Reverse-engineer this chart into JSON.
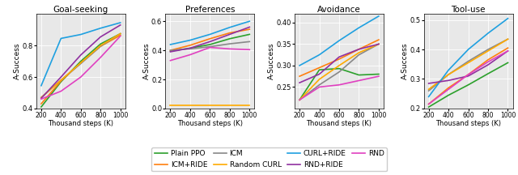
{
  "x": [
    200,
    400,
    600,
    800,
    1000
  ],
  "titles": [
    "Goal-seeking",
    "Preferences",
    "Avoidance",
    "Tool-use"
  ],
  "xlabel": "Thousand steps (K)",
  "ylabel": "A-Success",
  "series": {
    "Plain PPO": {
      "color": "#2ca02c",
      "lw": 1.2
    },
    "ICM+RIDE": {
      "color": "#ff7f0e",
      "lw": 1.2
    },
    "ICM": {
      "color": "#888888",
      "lw": 1.2
    },
    "Random CURL": {
      "color": "#ffaa00",
      "lw": 1.2
    },
    "CURL+RIDE": {
      "color": "#1fa0e0",
      "lw": 1.2
    },
    "RND+RIDE": {
      "color": "#9030a0",
      "lw": 1.2
    },
    "RND": {
      "color": "#e040c0",
      "lw": 1.2
    }
  },
  "data": {
    "Goal-seeking": {
      "Plain PPO": [
        0.41,
        0.57,
        0.7,
        0.81,
        0.875
      ],
      "ICM+RIDE": [
        0.43,
        0.575,
        0.69,
        0.795,
        0.865
      ],
      "ICM": [
        0.47,
        0.58,
        0.685,
        0.795,
        0.875
      ],
      "Random CURL": [
        0.47,
        0.58,
        0.69,
        0.8,
        0.875
      ],
      "CURL+RIDE": [
        0.545,
        0.845,
        0.87,
        0.91,
        0.945
      ],
      "RND+RIDE": [
        0.465,
        0.6,
        0.74,
        0.855,
        0.93
      ],
      "RND": [
        0.46,
        0.51,
        0.6,
        0.725,
        0.86
      ]
    },
    "Preferences": {
      "Plain PPO": [
        0.395,
        0.415,
        0.44,
        0.48,
        0.51
      ],
      "ICM+RIDE": [
        0.4,
        0.435,
        0.48,
        0.52,
        0.545
      ],
      "ICM": [
        0.4,
        0.41,
        0.425,
        0.445,
        0.46
      ],
      "Random CURL": [
        0.02,
        0.02,
        0.02,
        0.02,
        0.02
      ],
      "CURL+RIDE": [
        0.44,
        0.47,
        0.51,
        0.558,
        0.6
      ],
      "RND+RIDE": [
        0.39,
        0.415,
        0.46,
        0.51,
        0.56
      ],
      "RND": [
        0.33,
        0.37,
        0.42,
        0.41,
        0.405
      ]
    },
    "Avoidance": {
      "Plain PPO": [
        0.22,
        0.29,
        0.293,
        0.278,
        0.28
      ],
      "ICM+RIDE": [
        0.275,
        0.295,
        0.315,
        0.338,
        0.36
      ],
      "ICM": [
        0.22,
        0.255,
        0.285,
        0.325,
        0.35
      ],
      "Random CURL": [
        0.22,
        0.268,
        0.3,
        0.33,
        0.35
      ],
      "CURL+RIDE": [
        0.3,
        0.325,
        0.358,
        0.388,
        0.415
      ],
      "RND+RIDE": [
        0.26,
        0.28,
        0.32,
        0.338,
        0.35
      ],
      "RND": [
        0.22,
        0.25,
        0.255,
        0.265,
        0.275
      ]
    },
    "Tool-use": {
      "Plain PPO": [
        0.205,
        0.245,
        0.28,
        0.318,
        0.355
      ],
      "ICM+RIDE": [
        0.215,
        0.27,
        0.315,
        0.365,
        0.405
      ],
      "ICM": [
        0.26,
        0.315,
        0.36,
        0.4,
        0.435
      ],
      "Random CURL": [
        0.265,
        0.315,
        0.355,
        0.395,
        0.435
      ],
      "CURL+RIDE": [
        0.24,
        0.33,
        0.4,
        0.455,
        0.505
      ],
      "RND+RIDE": [
        0.285,
        0.295,
        0.31,
        0.348,
        0.395
      ],
      "RND": [
        0.215,
        0.265,
        0.315,
        0.358,
        0.395
      ]
    }
  },
  "ylims": {
    "Goal-seeking": [
      0.4,
      1.0
    ],
    "Preferences": [
      0.0,
      0.65
    ],
    "Avoidance": [
      0.2,
      0.42
    ],
    "Tool-use": [
      0.2,
      0.52
    ]
  },
  "yticks": {
    "Goal-seeking": [
      0.4,
      0.6,
      0.8
    ],
    "Preferences": [
      0.0,
      0.2,
      0.4,
      0.6
    ],
    "Avoidance": [
      0.25,
      0.3,
      0.35,
      0.4
    ],
    "Tool-use": [
      0.2,
      0.3,
      0.4,
      0.5
    ]
  },
  "legend_order": [
    "Plain PPO",
    "ICM+RIDE",
    "ICM",
    "Random CURL",
    "CURL+RIDE",
    "RND+RIDE",
    "RND"
  ],
  "legend_ncol": 4,
  "bg_color": "#e8e8e8"
}
